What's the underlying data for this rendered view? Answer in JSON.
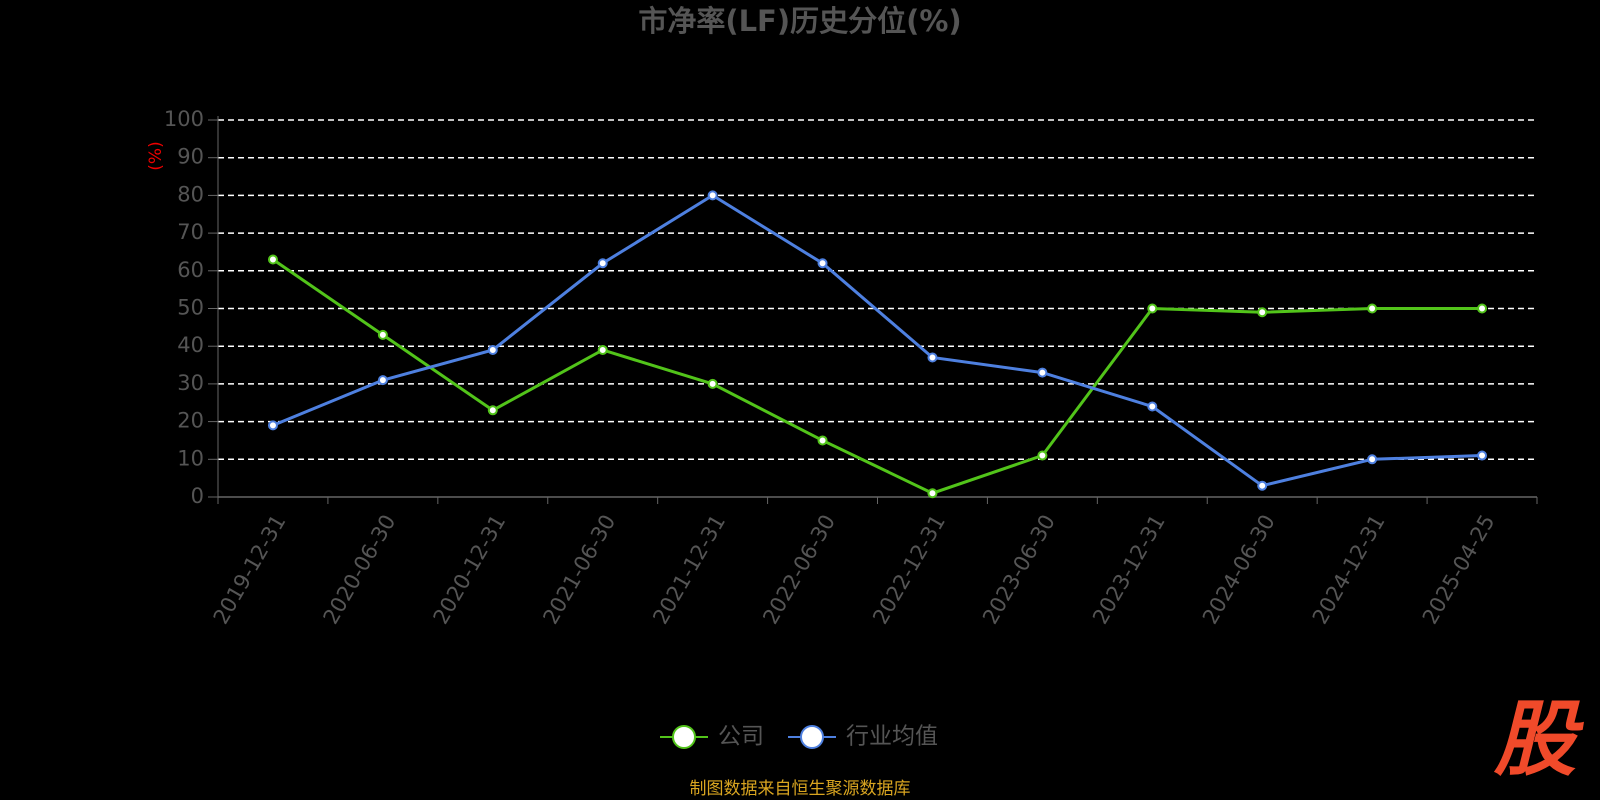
{
  "chart_data": {
    "type": "line",
    "title": "市净率(LF)历史分位(%)",
    "y_label": "(%)",
    "categories": [
      "2019-12-31",
      "2020-06-30",
      "2020-12-31",
      "2021-06-30",
      "2021-12-31",
      "2022-06-30",
      "2022-12-31",
      "2023-06-30",
      "2023-12-31",
      "2024-06-30",
      "2024-12-31",
      "2025-04-25"
    ],
    "series": [
      {
        "name": "公司",
        "color": "#52c41a",
        "values": [
          63,
          43,
          23,
          39,
          30,
          15,
          1,
          11,
          50,
          49,
          50,
          50
        ]
      },
      {
        "name": "行业均值",
        "color": "#4e80e0",
        "values": [
          19,
          31,
          39,
          62,
          80,
          62,
          37,
          33,
          24,
          3,
          10,
          11
        ]
      }
    ],
    "ylim": [
      0,
      100
    ],
    "yticks": [
      0,
      10,
      20,
      30,
      40,
      50,
      60,
      70,
      80,
      90,
      100
    ],
    "grid": true,
    "legend": "bottom",
    "footer": "制图数据来自恒生聚源数据库",
    "logo": "股"
  }
}
